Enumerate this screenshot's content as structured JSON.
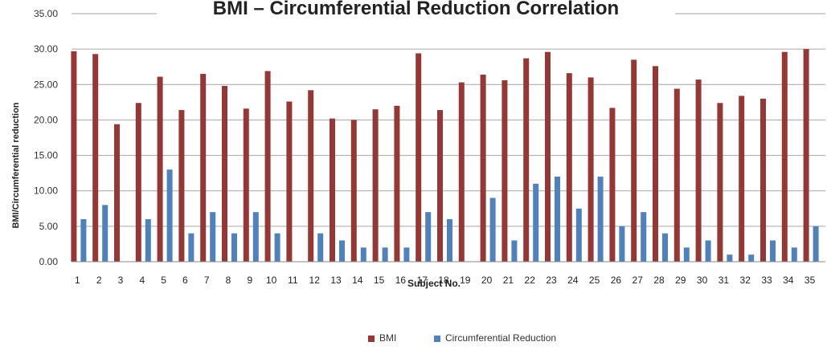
{
  "chart_data": {
    "type": "bar",
    "title": "BMI – Circumferential Reduction Correlation",
    "xlabel": "Subject No.",
    "ylabel": "BMI/Circumferential reduction",
    "ylim": [
      0,
      35
    ],
    "y_ticks": [
      "0.00",
      "5.00",
      "10.00",
      "15.00",
      "20.00",
      "25.00",
      "30.00",
      "35.00"
    ],
    "grid": true,
    "legend": "bottom",
    "categories": [
      "1",
      "2",
      "3",
      "4",
      "5",
      "6",
      "7",
      "8",
      "9",
      "10",
      "11",
      "12",
      "13",
      "14",
      "15",
      "16",
      "17",
      "18",
      "19",
      "20",
      "21",
      "22",
      "23",
      "24",
      "25",
      "26",
      "27",
      "28",
      "29",
      "30",
      "31",
      "32",
      "33",
      "34",
      "35"
    ],
    "series": [
      {
        "name": "BMI",
        "color": "#953735",
        "values": [
          29.7,
          29.3,
          19.4,
          22.4,
          26.1,
          21.4,
          26.5,
          24.8,
          21.6,
          26.9,
          22.6,
          24.2,
          20.2,
          20.0,
          21.5,
          22.0,
          29.4,
          21.4,
          25.3,
          26.4,
          25.6,
          28.7,
          29.6,
          26.6,
          26.0,
          21.7,
          28.5,
          27.6,
          24.4,
          25.7,
          22.4,
          23.4,
          23.0,
          29.6,
          30.0
        ]
      },
      {
        "name": "Circumferential Reduction",
        "color": "#4f81bd",
        "values": [
          6,
          8,
          0,
          6,
          13,
          4,
          7,
          4,
          7,
          4,
          0,
          4,
          3,
          2,
          2,
          2,
          7,
          6,
          0,
          9,
          3,
          11,
          12,
          7.5,
          12,
          5,
          7,
          4,
          2,
          3,
          1,
          1,
          3,
          2,
          5
        ]
      }
    ]
  }
}
